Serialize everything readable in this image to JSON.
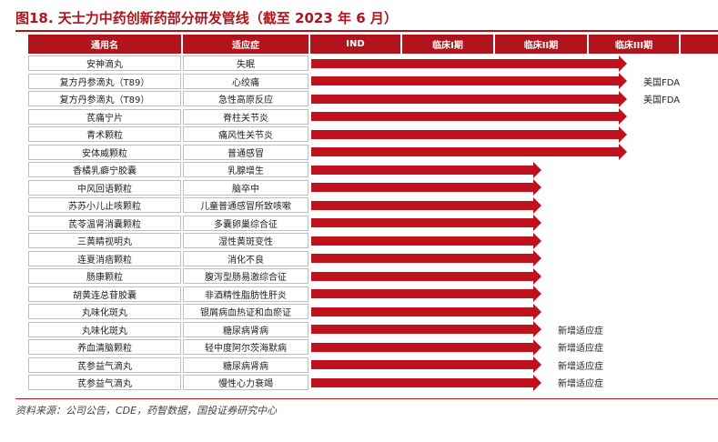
{
  "title": "图18. 天士力中药创新药部分研发管线（截至 2023 年 6 月）",
  "headers": [
    "通用名",
    "适应症",
    "IND",
    "临床I期",
    "临床II期",
    "临床III期"
  ],
  "stages_order": [
    "IND",
    "临床I期",
    "临床II期",
    "临床III期"
  ],
  "rows": [
    {
      "drug": "安神滴丸",
      "indication": "失眠",
      "stage": "临床III期",
      "note": ""
    },
    {
      "drug": "复方丹参滴丸（T89）",
      "indication": "心绞痛",
      "stage": "临床III期",
      "note": "美国FDA"
    },
    {
      "drug": "复方丹参滴丸（T89）",
      "indication": "急性高原反应",
      "stage": "临床III期",
      "note": "美国FDA"
    },
    {
      "drug": "芪痛宁片",
      "indication": "脊柱关节炎",
      "stage": "临床III期",
      "note": ""
    },
    {
      "drug": "青术颗粒",
      "indication": "痛风性关节炎",
      "stage": "临床III期",
      "note": ""
    },
    {
      "drug": "安体威颗粒",
      "indication": "普通感冒",
      "stage": "临床III期",
      "note": ""
    },
    {
      "drug": "香橘乳癖宁胶囊",
      "indication": "乳腺增生",
      "stage": "临床II期",
      "note": ""
    },
    {
      "drug": "中风回语颗粒",
      "indication": "脑卒中",
      "stage": "临床II期",
      "note": ""
    },
    {
      "drug": "苏苏小儿止咳颗粒",
      "indication": "儿童普通感冒所致咳嗽",
      "stage": "临床II期",
      "note": ""
    },
    {
      "drug": "芪苓温肾消囊颗粒",
      "indication": "多囊卵巢综合征",
      "stage": "临床II期",
      "note": ""
    },
    {
      "drug": "三黄睛视明丸",
      "indication": "湿性黄斑变性",
      "stage": "临床II期",
      "note": ""
    },
    {
      "drug": "连夏消痞颗粒",
      "indication": "消化不良",
      "stage": "临床II期",
      "note": ""
    },
    {
      "drug": "肠康颗粒",
      "indication": "腹泻型肠易激综合征",
      "stage": "临床II期",
      "note": ""
    },
    {
      "drug": "胡黄连总苷胶囊",
      "indication": "非酒精性脂肪性肝炎",
      "stage": "临床II期",
      "note": ""
    },
    {
      "drug": "丸味化斑丸",
      "indication": "银屑病血热证和血瘀证",
      "stage": "临床II期",
      "note": ""
    },
    {
      "drug": "丸味化斑丸",
      "indication": "糖尿病肾病",
      "stage": "临床II期",
      "note": "新增适应症"
    },
    {
      "drug": "养血清脑颗粒",
      "indication": "轻中度阿尔茨海默病",
      "stage": "临床II期",
      "note": "新增适应症"
    },
    {
      "drug": "芪参益气滴丸",
      "indication": "糖尿病肾病",
      "stage": "临床II期",
      "note": "新增适应症"
    },
    {
      "drug": "芪参益气滴丸",
      "indication": "慢性心力衰竭",
      "stage": "临床II期",
      "note": "新增适应症"
    }
  ],
  "source": "资料来源：公司公告，CDE，药智数据，国投证券研究中心",
  "colors": {
    "accent": "#b1141d",
    "bar": "#c0121c"
  }
}
